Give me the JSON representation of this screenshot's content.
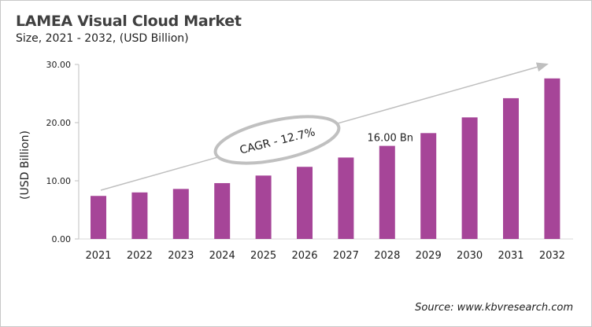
{
  "chart_data": {
    "type": "bar",
    "title": "LAMEA Visual Cloud Market",
    "subtitle": "Size, 2021 - 2032, (USD Billion)",
    "ylabel": "(USD Billion)",
    "xlabel": "",
    "categories": [
      "2021",
      "2022",
      "2023",
      "2024",
      "2025",
      "2026",
      "2027",
      "2028",
      "2029",
      "2030",
      "2031",
      "2032"
    ],
    "values": [
      7.4,
      8.0,
      8.6,
      9.6,
      10.9,
      12.4,
      14.0,
      16.0,
      18.2,
      20.9,
      24.2,
      27.6
    ],
    "ylim": [
      0,
      30
    ],
    "yticks": [
      "0.00",
      "10.00",
      "20.00",
      "30.00"
    ],
    "grid": false,
    "bar_color": "#A64598",
    "annotations": {
      "data_label": {
        "category": "2028",
        "text": "16.00 Bn"
      },
      "cagr": "CAGR - 12.7%"
    },
    "source": "Source: www.kbvresearch.com"
  }
}
